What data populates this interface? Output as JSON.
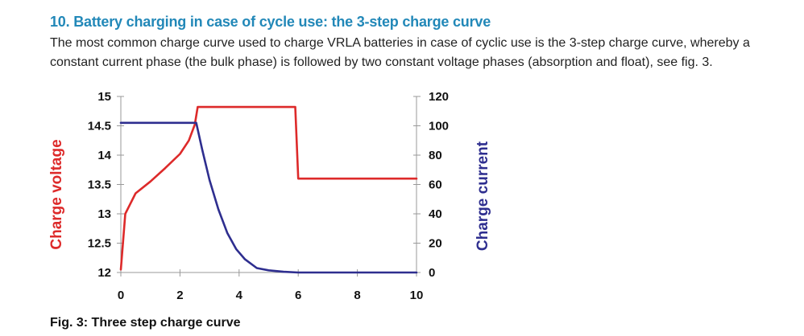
{
  "section": {
    "heading": "10. Battery charging in case of cycle use: the 3-step charge curve",
    "intro": "The most common charge curve used to charge VRLA batteries in case of cyclic use is the 3-step charge curve, whereby a constant current phase (the bulk phase) is followed by two constant voltage phases (absorption and float), see fig. 3."
  },
  "figure": {
    "caption": "Fig. 3: Three step charge curve"
  },
  "chart_data": {
    "type": "line",
    "title": "",
    "xlabel": "",
    "ylabel": "Charge voltage",
    "y2label": "Charge current",
    "xlim": [
      0,
      10
    ],
    "ylim": [
      12,
      15
    ],
    "y2lim": [
      0,
      120
    ],
    "x_ticks": [
      "0",
      "2",
      "4",
      "6",
      "8",
      "10"
    ],
    "y_ticks": [
      "12",
      "12.5",
      "13",
      "13.5",
      "14",
      "14.5",
      "15"
    ],
    "y2_ticks": [
      "0",
      "20",
      "40",
      "60",
      "80",
      "100",
      "120"
    ],
    "grid": false,
    "colors": {
      "voltage": "#dd2a2a",
      "current": "#2e2e8f",
      "axis": "#999999"
    },
    "series": [
      {
        "name": "Charge voltage",
        "axis": "left",
        "x": [
          0,
          0.15,
          0.5,
          1.0,
          1.5,
          2.0,
          2.3,
          2.5,
          2.6,
          2.65,
          5.9,
          6.0,
          10
        ],
        "y": [
          12.05,
          13.0,
          13.35,
          13.55,
          13.78,
          14.02,
          14.25,
          14.52,
          14.82,
          14.82,
          14.82,
          13.6,
          13.6
        ]
      },
      {
        "name": "Charge current",
        "axis": "right",
        "x": [
          0,
          2.55,
          2.75,
          3.0,
          3.3,
          3.6,
          3.9,
          4.2,
          4.6,
          5.0,
          5.5,
          6.0,
          10
        ],
        "y": [
          102,
          102,
          84,
          63,
          43,
          27,
          16,
          9,
          3,
          1.5,
          0.5,
          0,
          0
        ]
      }
    ]
  }
}
